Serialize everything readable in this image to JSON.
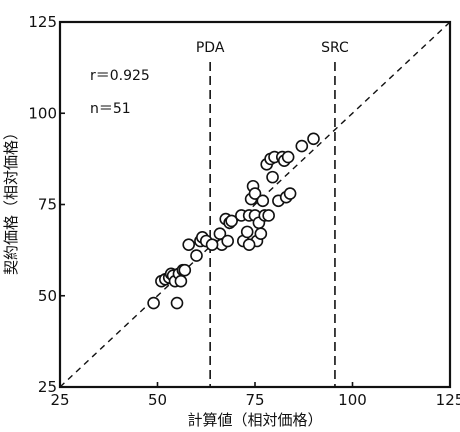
{
  "chart_data": {
    "type": "scatter",
    "xlabel": "計算値（相対価格）",
    "ylabel": "契約価格（相対価格）",
    "xlim": [
      25,
      125
    ],
    "ylim": [
      25,
      125
    ],
    "x_ticks": [
      "25",
      "50",
      "75",
      "100",
      "125"
    ],
    "y_ticks": [
      "25",
      "50",
      "75",
      "100",
      "125"
    ],
    "annotations": {
      "r": "r＝0.925",
      "n": "n＝51"
    },
    "reference_lines": [
      {
        "label": "PDA",
        "x": 63.5,
        "style": "dashed",
        "orientation": "vertical"
      },
      {
        "label": "SRC",
        "x": 95.5,
        "style": "dashed",
        "orientation": "vertical"
      }
    ],
    "diagonal": {
      "from": [
        25,
        25
      ],
      "to": [
        125,
        125
      ],
      "style": "dashed"
    },
    "series": [
      {
        "marker": "open-circle",
        "points": [
          [
            49,
            48
          ],
          [
            51,
            54
          ],
          [
            52,
            54.5
          ],
          [
            53,
            55
          ],
          [
            53.5,
            56
          ],
          [
            54,
            55.5
          ],
          [
            54.5,
            54
          ],
          [
            55,
            48
          ],
          [
            55.5,
            56
          ],
          [
            56,
            54
          ],
          [
            56.5,
            57
          ],
          [
            57,
            57
          ],
          [
            58,
            64
          ],
          [
            60,
            61
          ],
          [
            61,
            65
          ],
          [
            61.5,
            66
          ],
          [
            62.5,
            65
          ],
          [
            66,
            67
          ],
          [
            66.5,
            64
          ],
          [
            67.5,
            71
          ],
          [
            68,
            65
          ],
          [
            68.5,
            70
          ],
          [
            69,
            70.5
          ],
          [
            71.5,
            72
          ],
          [
            72,
            65
          ],
          [
            73,
            67.5
          ],
          [
            73.5,
            72
          ],
          [
            74,
            76.5
          ],
          [
            74.5,
            80
          ],
          [
            75,
            78
          ],
          [
            75,
            72
          ],
          [
            75.5,
            65
          ],
          [
            76,
            70
          ],
          [
            76.5,
            67
          ],
          [
            77,
            76
          ],
          [
            77.5,
            72
          ],
          [
            78,
            86
          ],
          [
            78.5,
            72
          ],
          [
            79,
            87.5
          ],
          [
            79.5,
            82.5
          ],
          [
            80,
            88
          ],
          [
            81,
            76
          ],
          [
            82,
            88
          ],
          [
            82.5,
            87
          ],
          [
            83,
            77
          ],
          [
            83.5,
            88
          ],
          [
            84,
            78
          ],
          [
            87,
            91
          ],
          [
            90,
            93
          ],
          [
            73.5,
            64
          ],
          [
            64,
            64
          ]
        ]
      }
    ]
  }
}
